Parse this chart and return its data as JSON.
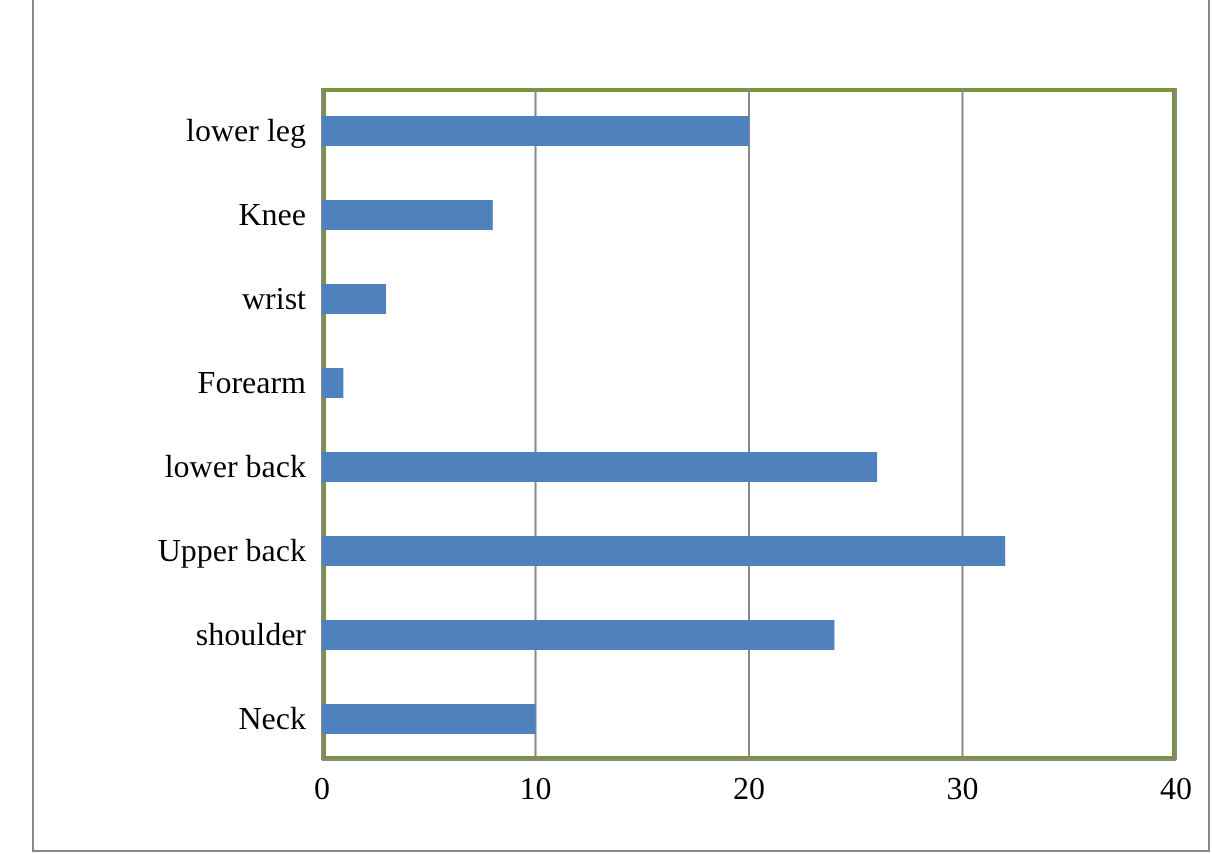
{
  "chart_data": {
    "type": "bar",
    "orientation": "horizontal",
    "categories": [
      "lower leg",
      "Knee",
      "wrist",
      "Forearm",
      "lower back",
      "Upper back",
      "shoulder",
      "Neck"
    ],
    "values": [
      20,
      8,
      3,
      1,
      26,
      32,
      24,
      10
    ],
    "color": "#4f81bd",
    "xlim": [
      0,
      40
    ],
    "xticks": [
      0,
      10,
      20,
      30,
      40
    ],
    "grid": "x",
    "legend": false
  }
}
